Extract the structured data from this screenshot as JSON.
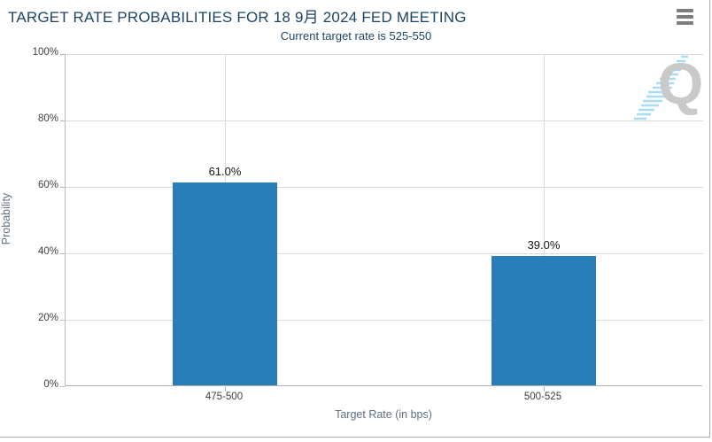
{
  "header": {
    "title": "TARGET RATE PROBABILITIES FOR 18 9月 2024 FED MEETING",
    "subtitle": "Current target rate is 525-550",
    "menu_icon": "hamburger-icon"
  },
  "colors": {
    "title_text": "#1d4466",
    "bar_fill": "#2a7eb8",
    "gridline": "#dcdcdc",
    "axis_line": "#b3b3b3",
    "watermark_letter": "#c9c9c9",
    "watermark_stripes": "#a9dcf2"
  },
  "chart_data": {
    "type": "bar",
    "title": "TARGET RATE PROBABILITIES FOR 18 9月 2024 FED MEETING",
    "subtitle": "Current target rate is 525-550",
    "categories": [
      "475-500",
      "500-525"
    ],
    "values": [
      61.0,
      39.0
    ],
    "value_labels": [
      "61.0%",
      "39.0%"
    ],
    "xlabel": "Target Rate (in bps)",
    "ylabel": "Probability",
    "ylim": [
      0,
      100
    ],
    "ytick_labels": [
      "100%",
      "80%",
      "60%",
      "40%",
      "20%",
      "0%"
    ],
    "grid": true,
    "legend_position": "none",
    "watermark_letter": "Q"
  }
}
